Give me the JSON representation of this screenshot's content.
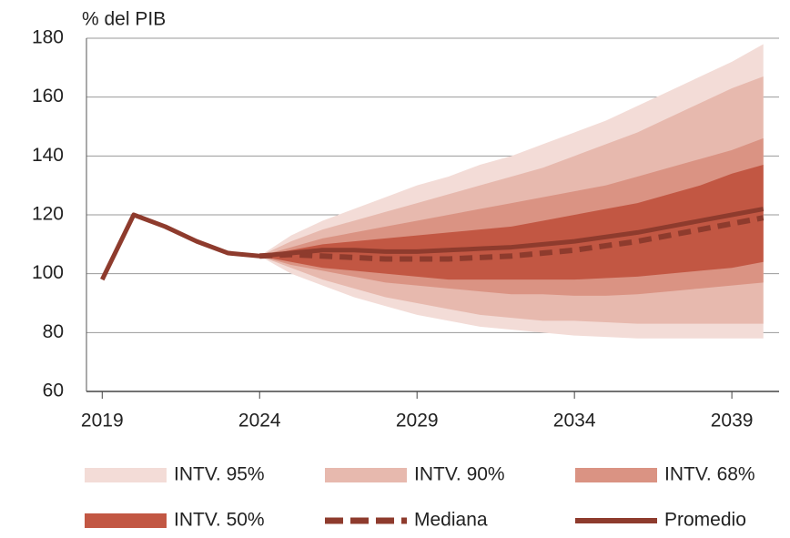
{
  "chart_data": {
    "type": "fan",
    "y_label": "% del PIB",
    "x": [
      2019,
      2020,
      2021,
      2022,
      2023,
      2024,
      2025,
      2026,
      2027,
      2028,
      2029,
      2030,
      2031,
      2032,
      2033,
      2034,
      2035,
      2036,
      2037,
      2038,
      2039,
      2040
    ],
    "xlim": [
      2018.5,
      2040.5
    ],
    "xticks": [
      2019,
      2024,
      2029,
      2034,
      2039
    ],
    "ylim": [
      60,
      180
    ],
    "yticks": [
      60,
      80,
      100,
      120,
      140,
      160,
      180
    ],
    "grid": true,
    "series": [
      {
        "name": "INTV. 95%",
        "kind": "band",
        "color": "#f3dcd7",
        "upper": [
          null,
          null,
          null,
          null,
          null,
          106,
          113,
          118,
          122,
          126,
          130,
          133,
          137,
          140,
          144,
          148,
          152,
          157,
          162,
          167,
          172,
          178
        ],
        "lower": [
          null,
          null,
          null,
          null,
          null,
          106,
          100,
          96,
          92,
          89,
          86,
          84,
          82,
          81,
          80,
          79,
          78.5,
          78,
          78,
          78,
          78,
          78
        ]
      },
      {
        "name": "INTV. 90%",
        "kind": "band",
        "color": "#e7b9ae",
        "upper": [
          null,
          null,
          null,
          null,
          null,
          106,
          111,
          115,
          118,
          121,
          124,
          127,
          130,
          133,
          136,
          140,
          144,
          148,
          153,
          158,
          163,
          167
        ],
        "lower": [
          null,
          null,
          null,
          null,
          null,
          106,
          102,
          98,
          95,
          92,
          90,
          88,
          86,
          85,
          84,
          84,
          83.5,
          83,
          83,
          83,
          83,
          83
        ]
      },
      {
        "name": "INTV. 68%",
        "kind": "band",
        "color": "#da9383",
        "upper": [
          null,
          null,
          null,
          null,
          null,
          106,
          109,
          112,
          114,
          116,
          118,
          120,
          122,
          124,
          126,
          128,
          130,
          133,
          136,
          139,
          142,
          146
        ],
        "lower": [
          null,
          null,
          null,
          null,
          null,
          106,
          103,
          101,
          99,
          97,
          96,
          95,
          94,
          93,
          93,
          92.5,
          92.5,
          93,
          94,
          95,
          96,
          97
        ]
      },
      {
        "name": "INTV. 50%",
        "kind": "band",
        "color": "#c25743",
        "upper": [
          null,
          null,
          null,
          null,
          null,
          106,
          108,
          110,
          111,
          112,
          113,
          114,
          115,
          116,
          118,
          120,
          122,
          124,
          127,
          130,
          134,
          137
        ],
        "lower": [
          null,
          null,
          null,
          null,
          null,
          106,
          104,
          102,
          101,
          100,
          99,
          98,
          98,
          98,
          98,
          98,
          98.5,
          99,
          100,
          101,
          102,
          104
        ]
      },
      {
        "name": "Mediana",
        "kind": "dashed",
        "color": "#8e3b2d",
        "values": [
          null,
          null,
          null,
          null,
          null,
          106,
          106.5,
          106,
          105.5,
          105,
          105,
          105,
          105.5,
          106,
          107,
          108,
          109.5,
          111,
          113,
          115,
          117,
          119
        ]
      },
      {
        "name": "Promedio",
        "kind": "line",
        "color": "#8e3b2d",
        "values": [
          98,
          120,
          116,
          111,
          107,
          106,
          107,
          108,
          108,
          107.5,
          107.5,
          108,
          108.5,
          109,
          110,
          111,
          112.5,
          114,
          116,
          118,
          120,
          122
        ]
      }
    ]
  }
}
